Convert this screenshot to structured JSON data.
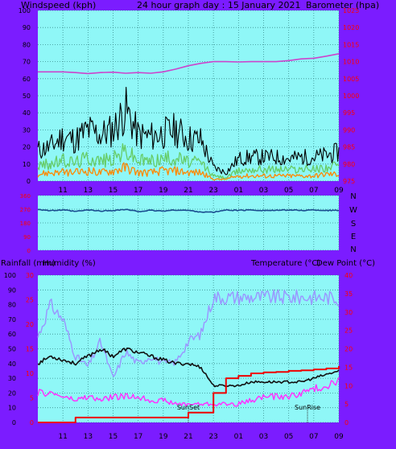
{
  "colors": {
    "frame": "#7b1cff",
    "plot_bg": "#8ff7f7",
    "grid": "#3a8f8f",
    "text": "#000000",
    "wind_gust": "#000000",
    "wind_avg": "#66cc66",
    "wind_speed": "#ff8800",
    "barometer": "#cc44cc",
    "direction": "#1a4d8f",
    "temperature": "#111111",
    "dew_point": "#ff33ff",
    "humidity": "#9999ff",
    "rainfall": "#ee0000",
    "red_axis": "#ff0000",
    "sun_markers": "#333333"
  },
  "header": {
    "left": "Windspeed (kph)",
    "center": "24 hour graph day : 15 January 2021",
    "right": "Barometer (hpa)"
  },
  "hours": [
    "11",
    "13",
    "15",
    "17",
    "19",
    "21",
    "23",
    "01",
    "03",
    "05",
    "07",
    "09"
  ],
  "direction_labels": [
    "N",
    "W",
    "S",
    "E",
    "N"
  ],
  "bottom_header": {
    "rain": "Rainfall (mm)",
    "humidity": "Humidity (%)",
    "temp": "Temperature (°C)",
    "dew": "Dew Point (°C)"
  },
  "events": {
    "sunset": "SunSet",
    "sunrise": "SunRise"
  },
  "chart_data": [
    {
      "type": "line",
      "title": "24 hour graph day : 15 January 2021",
      "x": [
        9,
        10,
        11,
        12,
        13,
        14,
        15,
        16,
        17,
        18,
        19,
        20,
        21,
        22,
        23,
        24,
        25,
        26,
        27,
        28,
        29,
        30,
        31,
        32,
        33
      ],
      "x_ticks": [
        "11",
        "13",
        "15",
        "17",
        "19",
        "21",
        "23",
        "01",
        "03",
        "05",
        "07",
        "09"
      ],
      "y_left": {
        "label": "Windspeed (kph)",
        "range": [
          0,
          100
        ],
        "ticks": [
          0,
          10,
          20,
          30,
          40,
          50,
          60,
          70,
          80,
          90,
          100
        ]
      },
      "y_right": {
        "label": "Barometer (hpa)",
        "range": [
          975,
          1025
        ],
        "ticks": [
          975,
          980,
          985,
          990,
          995,
          1000,
          1005,
          1010,
          1015,
          1020,
          1025
        ]
      },
      "series": [
        {
          "axis": "left",
          "values": [
            18,
            20,
            26,
            24,
            30,
            27,
            30,
            42,
            27,
            26,
            28,
            30,
            25,
            24,
            8,
            5,
            13,
            14,
            14,
            14,
            13,
            14,
            14,
            15,
            17
          ]
        },
        {
          "axis": "left",
          "values": [
            9,
            10,
            12,
            11,
            14,
            12,
            13,
            18,
            12,
            12,
            13,
            14,
            11,
            11,
            3,
            2,
            6,
            7,
            7,
            7,
            7,
            7,
            7,
            8,
            9
          ]
        },
        {
          "axis": "left",
          "values": [
            4,
            5,
            5,
            5,
            6,
            5,
            6,
            8,
            5,
            5,
            6,
            6,
            5,
            5,
            1,
            1,
            3,
            3,
            3,
            3,
            3,
            3,
            3,
            4,
            4
          ]
        },
        {
          "axis": "right",
          "values": [
            1007,
            1007,
            1007,
            1006.8,
            1006.5,
            1006.8,
            1006.9,
            1006.6,
            1006.8,
            1006.6,
            1007,
            1007.8,
            1008.8,
            1009.5,
            1010,
            1010,
            1009.9,
            1010,
            1010,
            1010,
            1010.3,
            1010.8,
            1011,
            1011.6,
            1012.3
          ]
        }
      ],
      "grid": true
    },
    {
      "type": "line",
      "x": [
        9,
        10,
        11,
        12,
        13,
        14,
        15,
        16,
        17,
        18,
        19,
        20,
        21,
        22,
        23,
        24,
        25,
        26,
        27,
        28,
        29,
        30,
        31,
        32,
        33
      ],
      "y_left": {
        "range": [
          0,
          360
        ],
        "ticks": [
          0,
          90,
          180,
          270,
          360
        ]
      },
      "y_right_labels": [
        "N",
        "W",
        "S",
        "E",
        "N"
      ],
      "series": [
        {
          "values": [
            270,
            260,
            265,
            255,
            265,
            258,
            262,
            268,
            255,
            262,
            258,
            265,
            262,
            252,
            250,
            265,
            262,
            265,
            262,
            262,
            265,
            262,
            265,
            262,
            262
          ]
        }
      ],
      "grid": true
    },
    {
      "type": "line",
      "x": [
        9,
        10,
        11,
        12,
        13,
        14,
        15,
        16,
        17,
        18,
        19,
        20,
        21,
        22,
        23,
        24,
        25,
        26,
        27,
        28,
        29,
        30,
        31,
        32,
        33
      ],
      "x_ticks": [
        "11",
        "13",
        "15",
        "17",
        "19",
        "21",
        "23",
        "01",
        "03",
        "05",
        "07",
        "09"
      ],
      "y_left": {
        "label": "Humidity (%)",
        "range": [
          0,
          100
        ],
        "ticks": [
          0,
          10,
          20,
          30,
          40,
          50,
          60,
          70,
          80,
          90,
          100
        ]
      },
      "y_left_red": {
        "label": "Rainfall (mm)",
        "range": [
          0,
          30
        ],
        "ticks": [
          0,
          5,
          10,
          15,
          20,
          25,
          30
        ]
      },
      "y_right": {
        "label": "Temperature (°C)",
        "range": [
          0,
          40
        ],
        "ticks": [
          0,
          5,
          10,
          15,
          20,
          25,
          30,
          35,
          40
        ]
      },
      "annotations": [
        {
          "text": "SunSet",
          "x": 21
        },
        {
          "text": "SunRise",
          "x": 30.5
        }
      ],
      "series": [
        {
          "axis": "right",
          "values": [
            16,
            18,
            17,
            16,
            18,
            20,
            18,
            20,
            19,
            18,
            17,
            16,
            16,
            15,
            10,
            10,
            10,
            11,
            11,
            11,
            11,
            11,
            12,
            13,
            14
          ]
        },
        {
          "axis": "right",
          "values": [
            8,
            8,
            7,
            6,
            7,
            6,
            7,
            7,
            7,
            6,
            6,
            5,
            5,
            5,
            5,
            5,
            5,
            6,
            7,
            7,
            7,
            8,
            9,
            10,
            12
          ]
        },
        {
          "axis": "left",
          "values": [
            58,
            80,
            70,
            45,
            38,
            55,
            30,
            48,
            40,
            45,
            40,
            41,
            55,
            60,
            85,
            85,
            85,
            85,
            85,
            85,
            85,
            85,
            85,
            85,
            84
          ]
        },
        {
          "axis": "left_red",
          "values": [
            0,
            0,
            0,
            1,
            1,
            1,
            1,
            1,
            1,
            1,
            1,
            1,
            2,
            2,
            6,
            9,
            9.5,
            10,
            10.2,
            10.3,
            10.5,
            10.6,
            10.8,
            11,
            11.5
          ]
        }
      ],
      "grid": true
    }
  ]
}
